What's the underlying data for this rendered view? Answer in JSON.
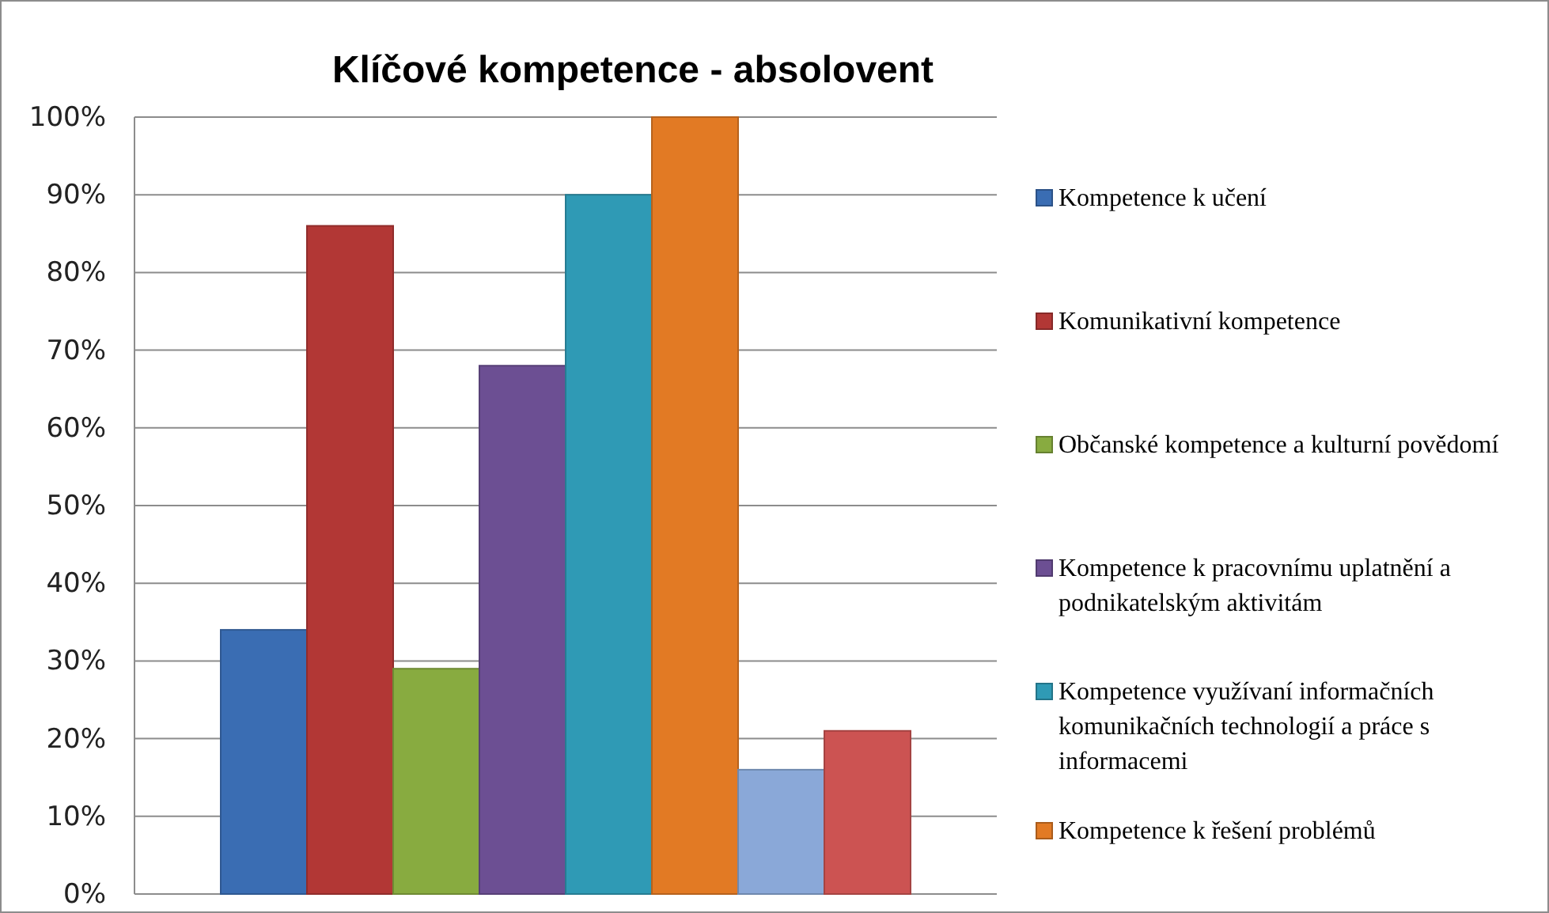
{
  "chart_data": {
    "type": "bar",
    "title": "Klíčové kompetence - absolovent",
    "categories": [
      null
    ],
    "series": [
      {
        "name": "Kompetence k učení",
        "color": "#3a6db3",
        "values": [
          34
        ]
      },
      {
        "name": "Komunikativní kompetence",
        "color": "#b23735",
        "values": [
          86
        ]
      },
      {
        "name": "Občanské kompetence a kulturní povědomí",
        "color": "#88ab40",
        "values": [
          29
        ]
      },
      {
        "name": "Kompetence k pracovnímu uplatnění a podnikatelským aktivitám",
        "color": "#6c4f93",
        "values": [
          68
        ]
      },
      {
        "name": "Kompetence využívaní informačních komunikačních technologií a práce s informacemi",
        "color": "#2f9ab5",
        "values": [
          90
        ]
      },
      {
        "name": "Kompetence k řešení problémů",
        "color": "#e27a24",
        "values": [
          100
        ]
      },
      {
        "color": "#8aa8d8",
        "values": [
          16
        ]
      },
      {
        "color": "#cc5352",
        "values": [
          21
        ]
      }
    ],
    "ylim": [
      0,
      100
    ],
    "yticks": [
      {
        "value": 0,
        "label": "0%"
      },
      {
        "value": 10,
        "label": "10%"
      },
      {
        "value": 20,
        "label": "20%"
      },
      {
        "value": 30,
        "label": "30%"
      },
      {
        "value": 40,
        "label": "40%"
      },
      {
        "value": 50,
        "label": "50%"
      },
      {
        "value": 60,
        "label": "60%"
      },
      {
        "value": 70,
        "label": "70%"
      },
      {
        "value": 80,
        "label": "80%"
      },
      {
        "value": 90,
        "label": "90%"
      },
      {
        "value": 100,
        "label": "100%"
      }
    ],
    "grid": "y",
    "legend": "right"
  }
}
